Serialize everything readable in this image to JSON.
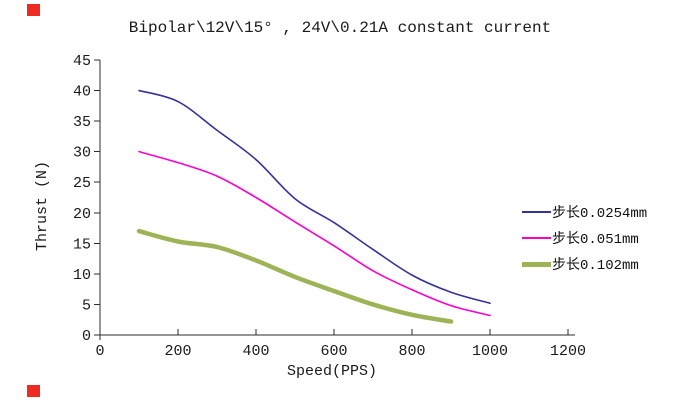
{
  "page": {
    "title": "Bipolar\\12V\\15° , 24V\\0.21A constant current"
  },
  "decorations": {
    "red_marker_color": "#ed2b20"
  },
  "chart_data": {
    "type": "line",
    "title": "Bipolar\\12V\\15° , 24V\\0.21A constant current",
    "xlabel": "Speed(PPS)",
    "ylabel": "Thrust (N)",
    "xlim": [
      0,
      1200
    ],
    "ylim": [
      0,
      45
    ],
    "xticks": [
      0,
      200,
      400,
      600,
      800,
      1000,
      1200
    ],
    "yticks": [
      0,
      5,
      10,
      15,
      20,
      25,
      30,
      35,
      40,
      45
    ],
    "grid": false,
    "legend_position": "right-middle",
    "axis_color": "#2b2b2b",
    "series": [
      {
        "name": "步长0.0254mm",
        "color": "#333399",
        "width": 1.6,
        "x": [
          100,
          200,
          300,
          400,
          500,
          600,
          700,
          800,
          900,
          1000
        ],
        "y": [
          40,
          38.2,
          33.5,
          28.7,
          22.3,
          18.4,
          14,
          9.8,
          7,
          5.2
        ]
      },
      {
        "name": "步长0.051mm",
        "color": "#ff00cc",
        "width": 1.6,
        "x": [
          100,
          200,
          300,
          400,
          500,
          600,
          700,
          800,
          900,
          1000
        ],
        "y": [
          30,
          28.2,
          26,
          22.5,
          18.5,
          14.6,
          10.5,
          7.4,
          4.8,
          3.2
        ]
      },
      {
        "name": "步长0.102mm",
        "color": "#9cb356",
        "width": 4.5,
        "x": [
          100,
          200,
          300,
          400,
          500,
          600,
          700,
          800,
          900
        ],
        "y": [
          17,
          15.3,
          14.4,
          12.2,
          9.5,
          7.2,
          5,
          3.3,
          2.2
        ]
      }
    ]
  }
}
